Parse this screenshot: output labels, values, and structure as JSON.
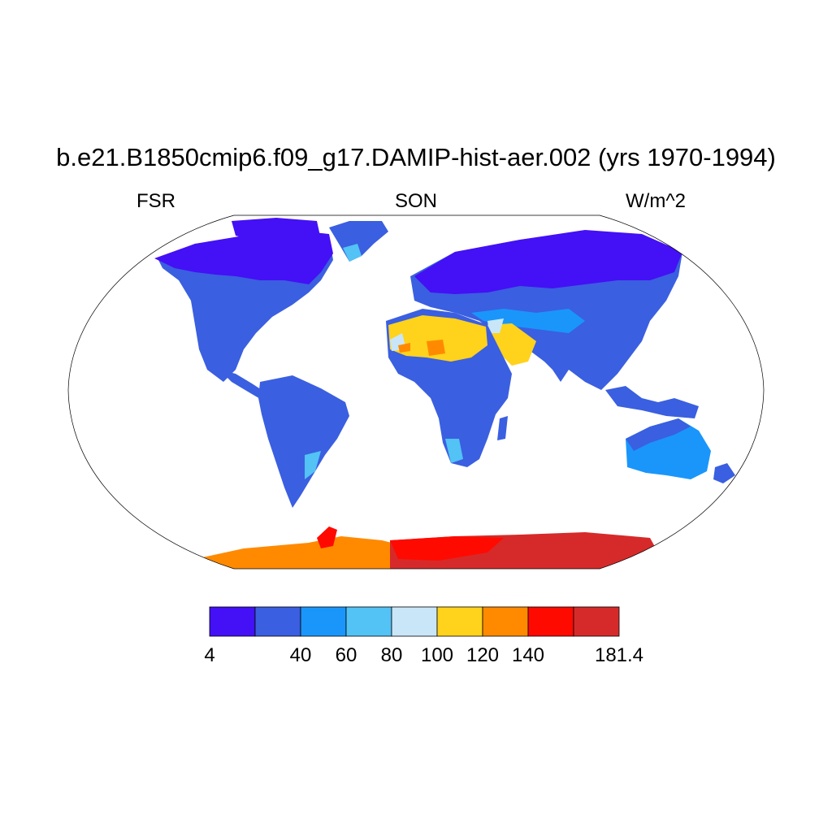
{
  "title": "b.e21.B1850cmip6.f09_g17.DAMIP-hist-aer.002 (yrs 1970-1994)",
  "left_label": "FSR",
  "center_label": "SON",
  "right_label": "W/m^2",
  "colorbar": {
    "colors": [
      "#4410f5",
      "#3a5fe0",
      "#1a96fb",
      "#53c2f5",
      "#c9e6f8",
      "#ffd21c",
      "#ff8a00",
      "#ff0a00",
      "#d62a2a"
    ],
    "tick_labels": [
      "4",
      "40",
      "60",
      "80",
      "100",
      "120",
      "140",
      "181.4"
    ]
  },
  "map_regions": {
    "antarctica_west": "#ff8a00",
    "antarctica_east": "#d62a2a",
    "sahara": "#ffd21c",
    "high_latitude_north": "#4410f5",
    "tropics": "#3a5fe0",
    "australia": "#1a96fb"
  }
}
